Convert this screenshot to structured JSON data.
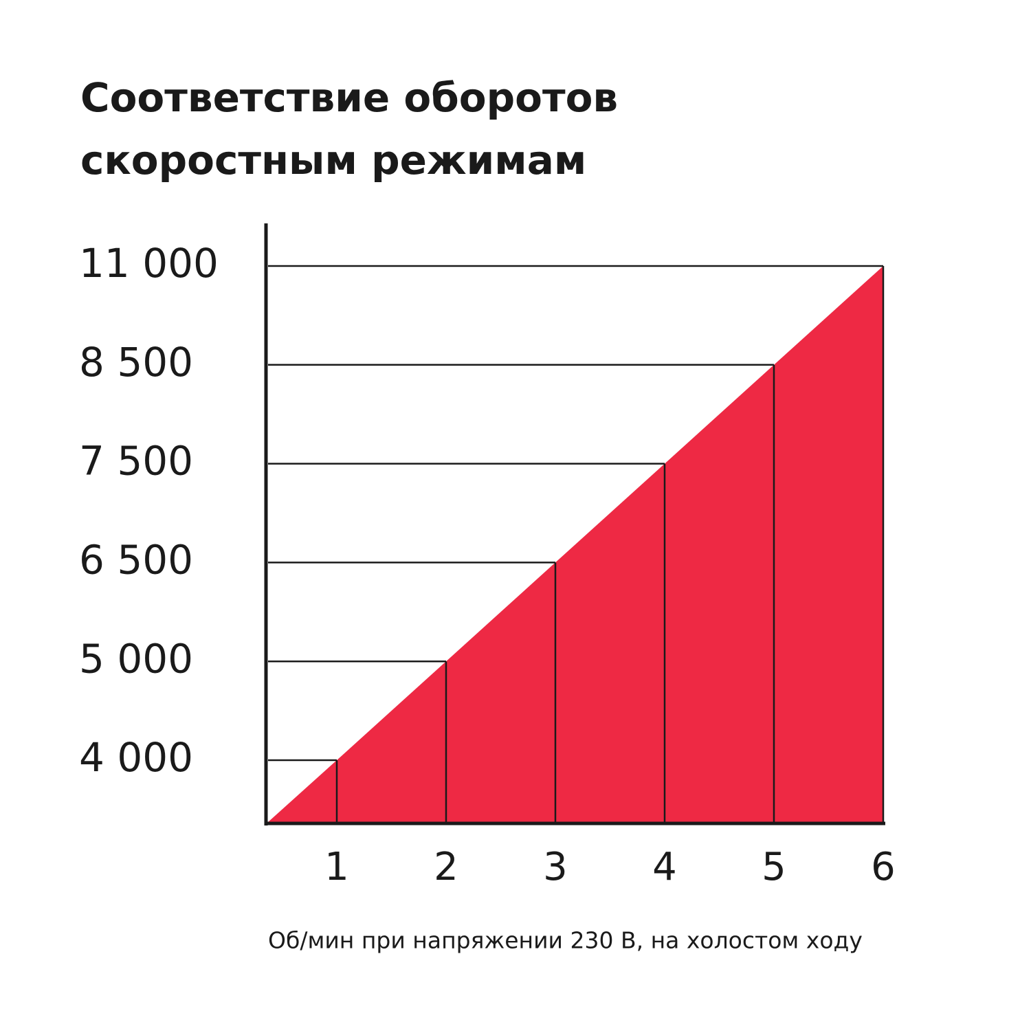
{
  "chart_data": {
    "type": "area",
    "title": [
      "Соответствие оборотов",
      "скоростным режимам"
    ],
    "x_label": "Об/мин при напряжении 230 В, на холостом ходу",
    "categories": [
      "1",
      "2",
      "3",
      "4",
      "5",
      "6"
    ],
    "values": [
      4000,
      5000,
      6500,
      7500,
      8500,
      11000
    ],
    "color": "#ee2944",
    "ylim": [
      0,
      11000
    ],
    "yticks": [
      {
        "value": 4000,
        "label": "4 000"
      },
      {
        "value": 5000,
        "label": "5 000"
      },
      {
        "value": 6500,
        "label": "6 500"
      },
      {
        "value": 7500,
        "label": "7 500"
      },
      {
        "value": 8500,
        "label": "8 500"
      },
      {
        "value": 11000,
        "label": "11 000"
      }
    ],
    "grid": true
  }
}
